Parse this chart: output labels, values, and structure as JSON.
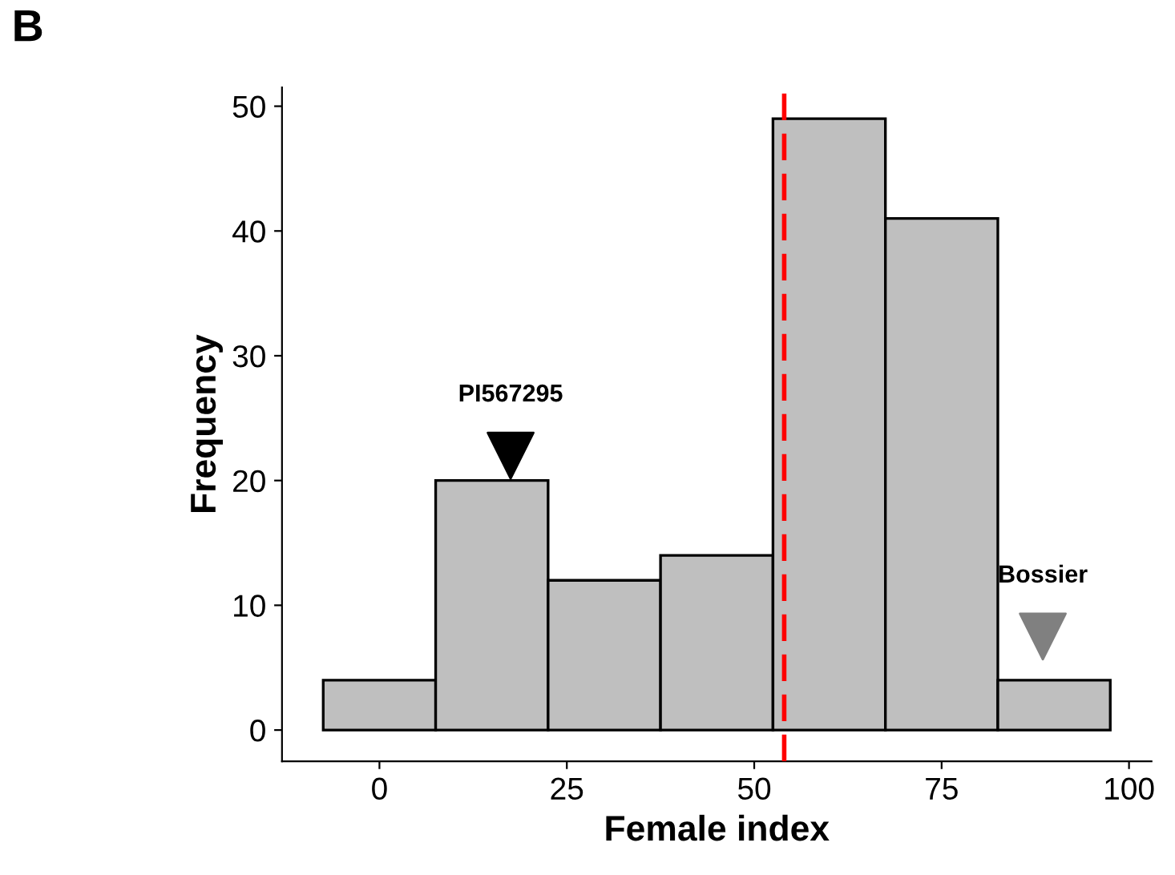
{
  "chart_data": {
    "type": "histogram",
    "xlabel": "Female index",
    "ylabel": "Frequency",
    "bins": [
      -7.5,
      7.5,
      22.5,
      37.5,
      52.5,
      67.5,
      82.5,
      97.5
    ],
    "values": [
      4,
      20,
      12,
      14,
      49,
      41,
      4
    ],
    "color": "#bfbfbf",
    "series": [
      {
        "type": "scatter",
        "name": "PI567295",
        "color": "#000000",
        "x": [
          17.5
        ],
        "values": [
          22
        ],
        "marker": "triangle"
      },
      {
        "type": "scatter",
        "name": "Bossier",
        "color": "#808080",
        "x": [
          88.5
        ],
        "values": [
          7.5
        ],
        "marker": "triangle"
      }
    ],
    "ref_lines": [
      {
        "axis": "x",
        "value": 54,
        "color": "#ff0000",
        "line_style": "dashed"
      }
    ],
    "xlim": [
      -13,
      103
    ],
    "ylim": [
      -2.5,
      51.5
    ],
    "xticks": [
      0,
      25,
      50,
      75,
      100
    ],
    "yticks": [
      0,
      10,
      20,
      30,
      40,
      50
    ],
    "grid": false,
    "annotations": [
      "B"
    ]
  }
}
